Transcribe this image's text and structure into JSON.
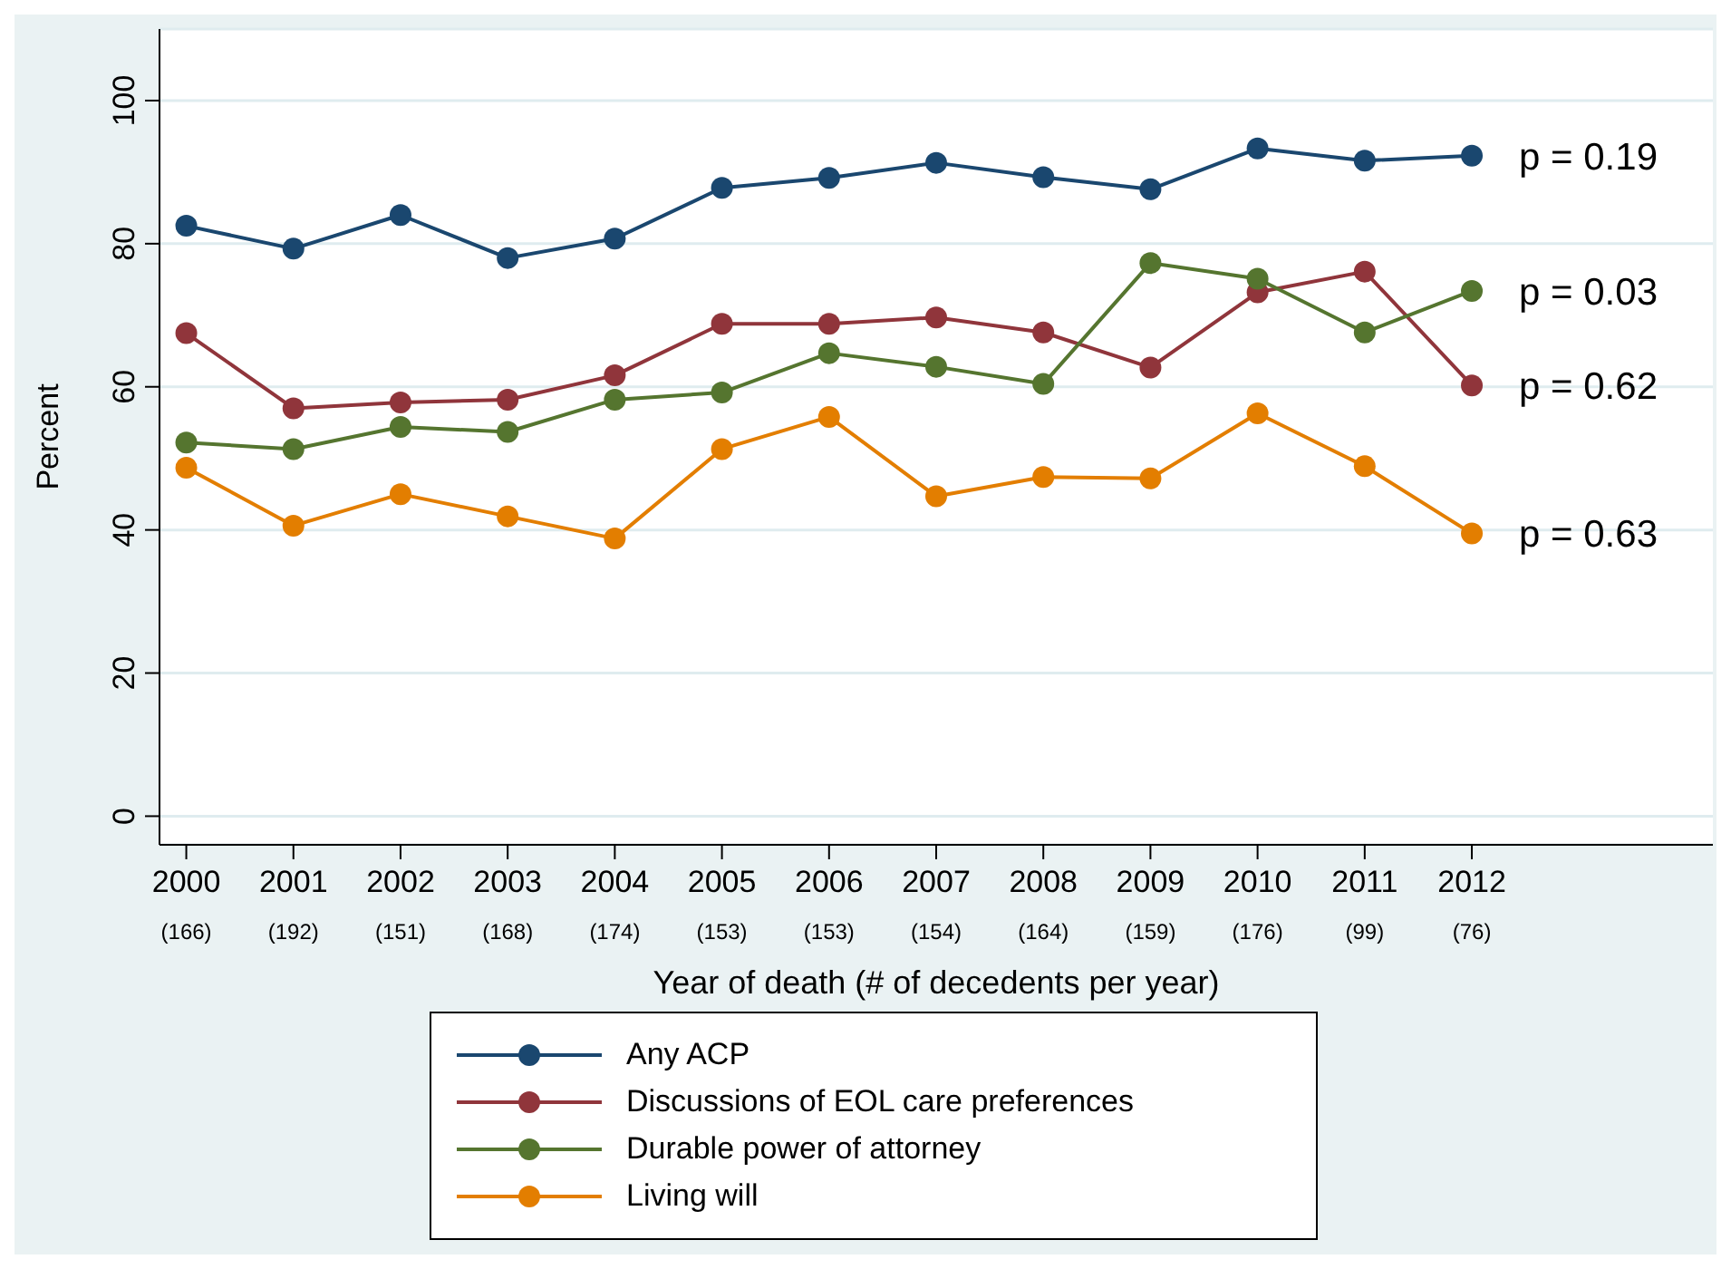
{
  "chart_data": {
    "type": "line",
    "xlabel": "Year of death (# of decedents per year)",
    "ylabel": "Percent",
    "categories": [
      "2000\n(166)",
      "2001\n(192)",
      "2002\n(151)",
      "2003\n(168)",
      "2004\n(174)",
      "2005\n(153)",
      "2006\n(153)",
      "2007\n(154)",
      "2008\n(164)",
      "2009\n(159)",
      "2010\n(176)",
      "2011\n(99)",
      "2012\n(76)"
    ],
    "ylim": [
      -4,
      110
    ],
    "yticks": [
      0,
      20,
      40,
      60,
      80,
      100
    ],
    "grid": "y",
    "legend": "bottom",
    "marker": "circle",
    "line_style": "solid",
    "series": [
      {
        "name": "Any ACP",
        "color": "#1a476f",
        "values": [
          82.5,
          79.3,
          84,
          78,
          80.7,
          87.8,
          89.2,
          91.3,
          89.3,
          87.6,
          93.3,
          91.6,
          92.3
        ]
      },
      {
        "name": "Discussions of EOL care preferences",
        "color": "#90353b",
        "values": [
          67.5,
          57,
          57.8,
          58.2,
          61.6,
          68.8,
          68.8,
          69.7,
          67.6,
          62.7,
          73.2,
          76.1,
          60.2
        ]
      },
      {
        "name": "Durable power of attorney",
        "color": "#55752f",
        "values": [
          52.2,
          51.3,
          54.4,
          53.7,
          58.2,
          59.2,
          64.7,
          62.8,
          60.4,
          77.3,
          75.1,
          67.6,
          73.4
        ]
      },
      {
        "name": "Living will",
        "color": "#e37e00",
        "values": [
          48.7,
          40.6,
          45,
          41.9,
          38.8,
          51.3,
          55.8,
          44.7,
          47.4,
          47.2,
          56.3,
          48.9,
          39.5
        ]
      }
    ],
    "annotations": [
      {
        "text": "p = 0.19",
        "x": "2012\n(76)",
        "y": 92.3
      },
      {
        "text": "p = 0.03",
        "x": "2012\n(76)",
        "y": 73.4
      },
      {
        "text": "p = 0.62",
        "x": "2012\n(76)",
        "y": 60.2
      },
      {
        "text": "p = 0.63",
        "x": "2012\n(76)",
        "y": 39.5
      }
    ]
  }
}
